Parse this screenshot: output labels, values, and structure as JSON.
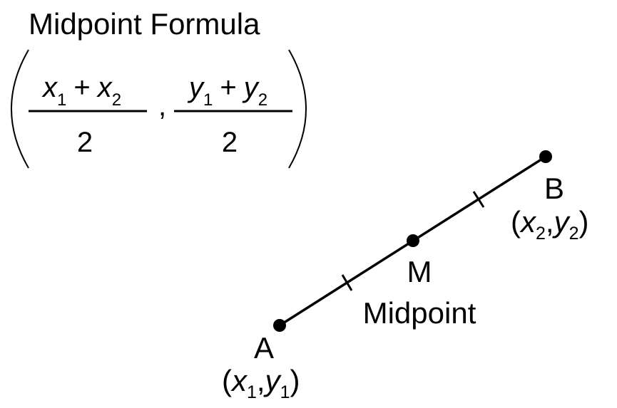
{
  "title": "Midpoint Formula",
  "formula": {
    "x_num": {
      "var1": "x",
      "sub1": "1",
      "op": "+",
      "var2": "x",
      "sub2": "2"
    },
    "x_den": "2",
    "comma": ",",
    "y_num": {
      "var1": "y",
      "sub1": "1",
      "op": "+",
      "var2": "y",
      "sub2": "2"
    },
    "y_den": "2"
  },
  "points": {
    "a": {
      "label": "A",
      "open": "(",
      "var_x": "x",
      "sub_x": "1",
      "comma": ",",
      "var_y": "y",
      "sub_y": "1",
      "close": ")"
    },
    "m": {
      "label": "M",
      "caption": "Midpoint"
    },
    "b": {
      "label": "B",
      "open": "(",
      "var_x": "x",
      "sub_x": "2",
      "comma": ",",
      "var_y": "y",
      "sub_y": "2",
      "close": ")"
    }
  },
  "colors": {
    "ink": "#000000",
    "background": "#ffffff"
  }
}
